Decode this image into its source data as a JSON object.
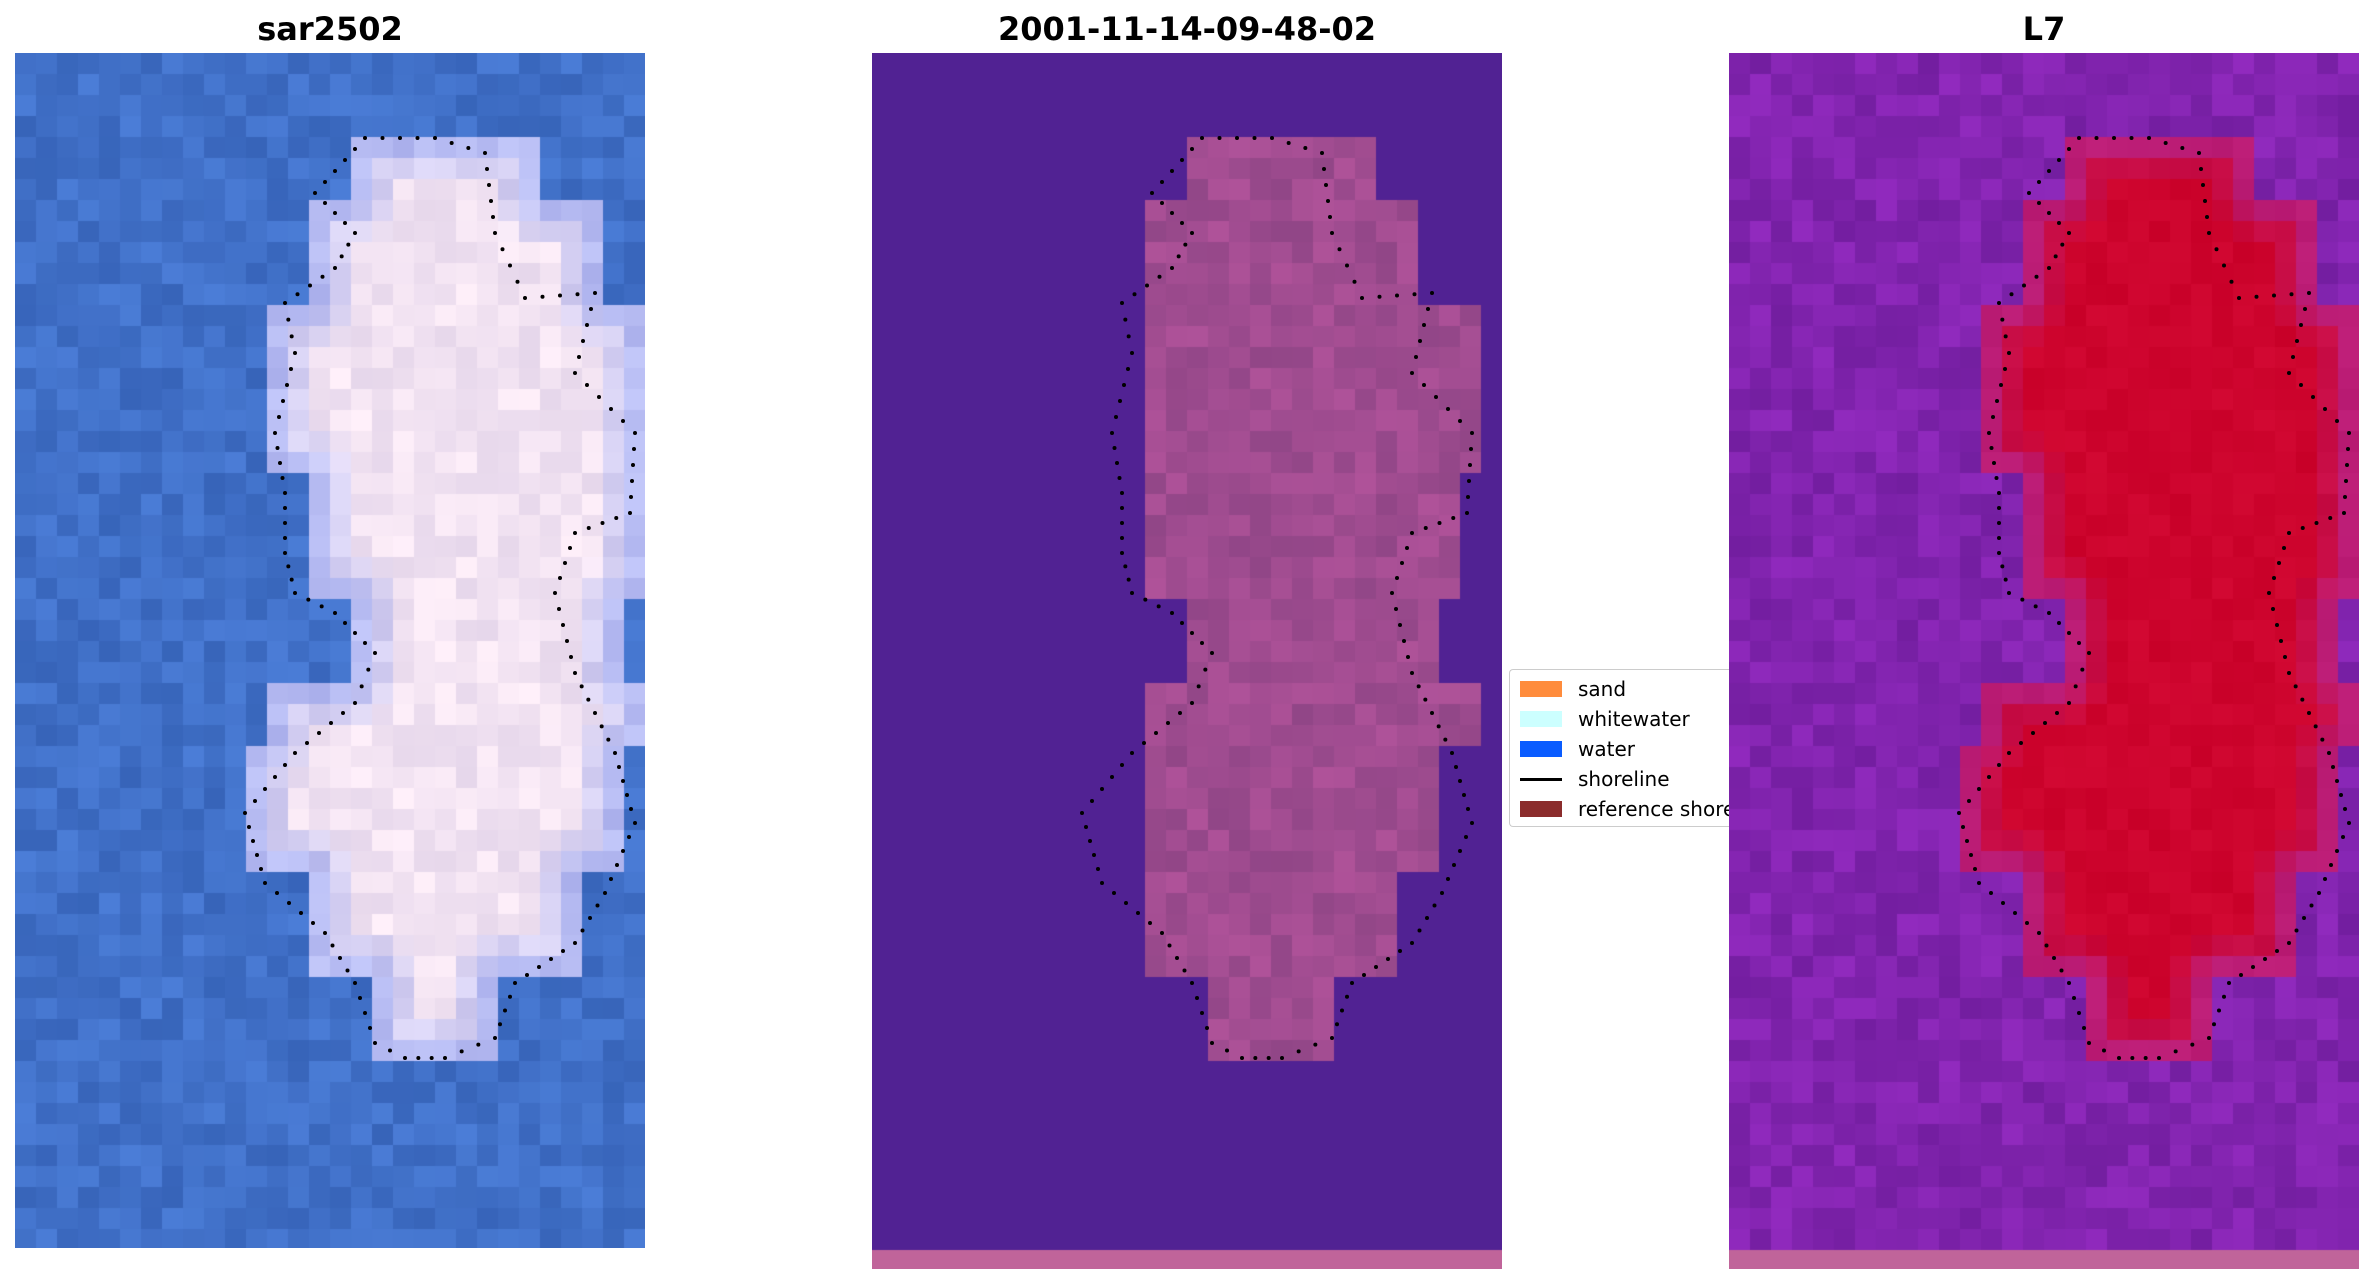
{
  "panels": [
    {
      "id": "rgb",
      "title": "sar2502",
      "image": "rgb-satellite-image"
    },
    {
      "id": "classified",
      "title": "2001-11-14-09-48-02",
      "image": "classified-image"
    },
    {
      "id": "index",
      "title": "L7",
      "image": "index-image"
    }
  ],
  "legend": {
    "items": [
      {
        "label": "sand",
        "color": "#ff8c3c",
        "kind": "patch"
      },
      {
        "label": "whitewater",
        "color": "#ccffff",
        "kind": "patch"
      },
      {
        "label": "water",
        "color": "#0a5cff",
        "kind": "patch"
      },
      {
        "label": "shoreline",
        "color": "#000000",
        "kind": "line"
      },
      {
        "label": "reference shoreline",
        "color": "#8b2c2c",
        "kind": "patch"
      }
    ]
  },
  "colors": {
    "background": "#ffffff",
    "water_blue": "#3a6cc2",
    "whitewater_light": "#d8e0f8",
    "classified_background": "#512293",
    "classified_island": "#9c4f94",
    "index_background": "#7a22a8",
    "index_island": "#c8002a",
    "bottom_band": "#c0649a"
  }
}
